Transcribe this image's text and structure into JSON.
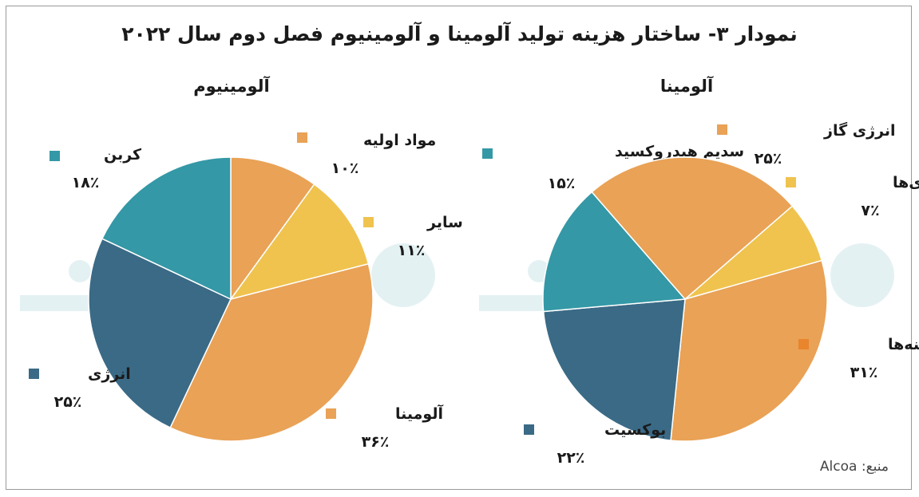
{
  "title": "نمودار ۳- ساختار هزینه تولید آلومینا و آلومینیوم فصل دوم سال ۲۰۲۲",
  "source": "منبع: Alcoa",
  "colors": {
    "orange": "#E9A256",
    "yellow": "#EFC34E",
    "teal": "#3498A6",
    "navy": "#3A6A86",
    "dark_orange": "#E8852D"
  },
  "chart_data": [
    {
      "type": "pie",
      "title": "آلومینیوم",
      "slices": [
        {
          "label": "مواد اولیه",
          "pct_label": "۱۰٪",
          "value": 10,
          "color": "#E9A256"
        },
        {
          "label": "سایر",
          "pct_label": "۱۱٪",
          "value": 11,
          "color": "#EFC34E"
        },
        {
          "label": "آلومینا",
          "pct_label": "۳۶٪",
          "value": 36,
          "color": "#E9A256"
        },
        {
          "label": "انرژی",
          "pct_label": "۲۵٪",
          "value": 25,
          "color": "#3A6A86"
        },
        {
          "label": "کربن",
          "pct_label": "۱۸٪",
          "value": 18,
          "color": "#3498A6"
        }
      ]
    },
    {
      "type": "pie",
      "title": "آلومینا",
      "slices": [
        {
          "label": "سایر انرژی‌ها",
          "pct_label": "۷٪",
          "value": 7,
          "color": "#EFC34E"
        },
        {
          "label": "سایر هزینه‌ها",
          "pct_label": "۳۱٪",
          "value": 31,
          "color": "#E9A256",
          "legend_color": "#E8852D"
        },
        {
          "label": "بوکسیت",
          "pct_label": "۲۲٪",
          "value": 22,
          "color": "#3A6A86"
        },
        {
          "label": "سدیم هیدروکسید",
          "pct_label": "۱۵٪",
          "value": 15,
          "color": "#3498A6"
        },
        {
          "label": "انرژی گاز",
          "pct_label": "۲۵٪",
          "value": 25,
          "color": "#E9A256"
        }
      ]
    }
  ]
}
